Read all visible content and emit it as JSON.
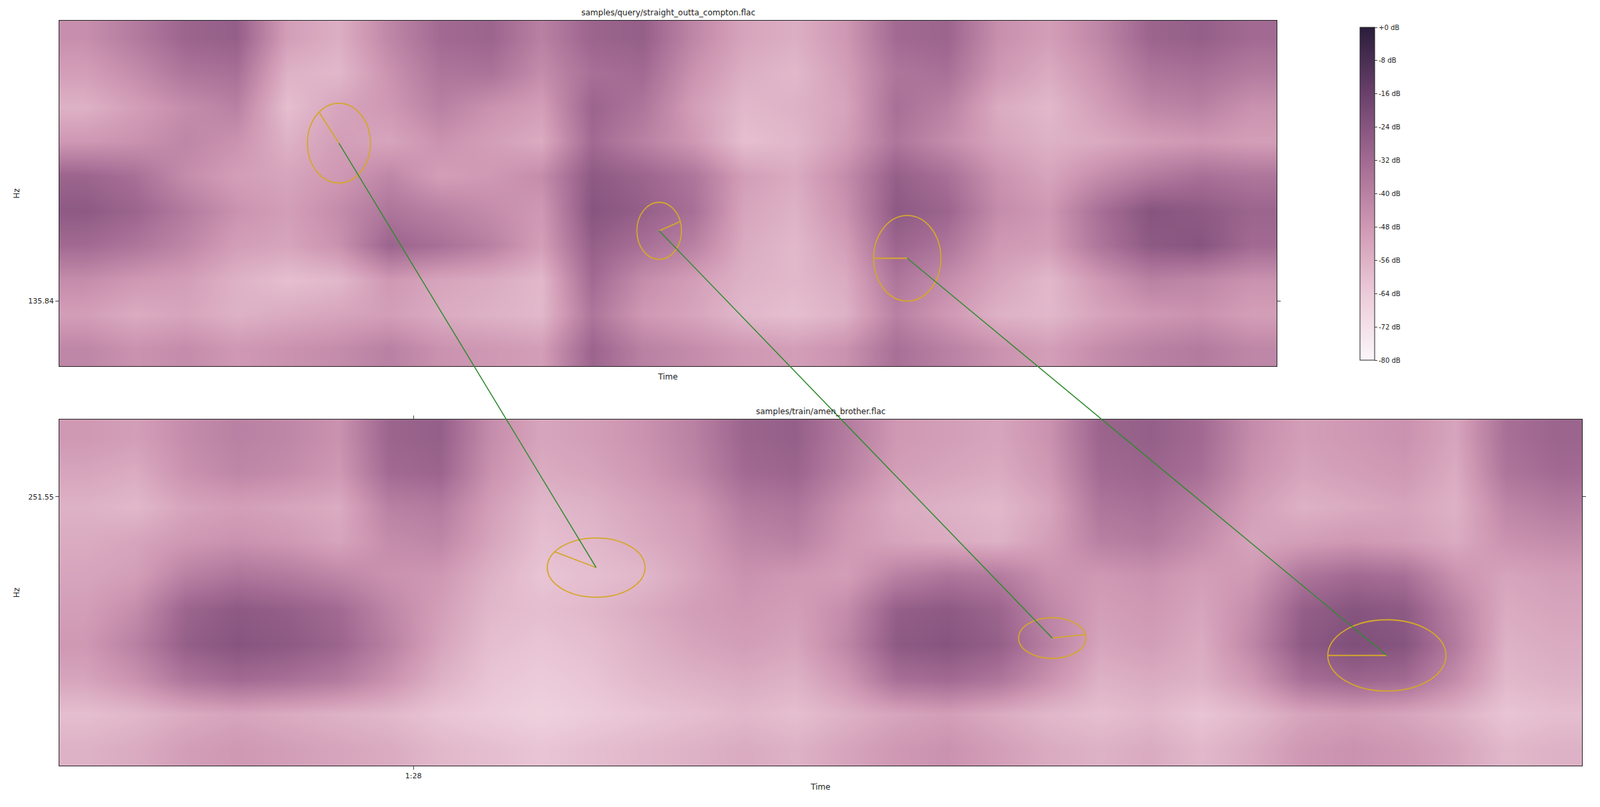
{
  "chart_data": [
    {
      "type": "heatmap",
      "title": "samples/query/straight_outta_compton.flac",
      "x_label": "Time",
      "y_label": "Hz",
      "xlim": [
        0,
        3.44
      ],
      "ylim": [
        100,
        290
      ],
      "xticks": [],
      "yticks": [
        135.84
      ],
      "tick_labels": "y",
      "grid": false,
      "color_range": [
        -80,
        0
      ],
      "color_ticks": [
        {
          "value": 0,
          "label": "+0 dB"
        },
        {
          "value": -8,
          "label": "-8 dB"
        },
        {
          "value": -16,
          "label": "-16 dB"
        },
        {
          "value": -24,
          "label": "-24 dB"
        },
        {
          "value": -32,
          "label": "-32 dB"
        },
        {
          "value": -40,
          "label": "-40 dB"
        },
        {
          "value": -48,
          "label": "-48 dB"
        },
        {
          "value": -56,
          "label": "-56 dB"
        },
        {
          "value": -64,
          "label": "-64 dB"
        },
        {
          "value": -72,
          "label": "-72 dB"
        },
        {
          "value": -80,
          "label": "-80 dB"
        }
      ],
      "cells": [
        [
          -42,
          -46,
          -44,
          -48,
          -46,
          -44,
          -40,
          -46,
          -48,
          -50,
          -30,
          -40,
          -44,
          -48,
          -50,
          -46,
          -34,
          -40,
          -46,
          -50,
          -44,
          -40,
          -38,
          -42
        ],
        [
          -50,
          -54,
          -52,
          -56,
          -54,
          -52,
          -50,
          -54,
          -56,
          -58,
          -36,
          -48,
          -52,
          -58,
          -60,
          -56,
          -40,
          -48,
          -56,
          -58,
          -52,
          -48,
          -46,
          -50
        ],
        [
          -44,
          -48,
          -50,
          -56,
          -60,
          -58,
          -48,
          -52,
          -54,
          -58,
          -32,
          -44,
          -50,
          -56,
          -58,
          -54,
          -36,
          -44,
          -52,
          -58,
          -48,
          -40,
          -42,
          -46
        ],
        [
          -32,
          -36,
          -42,
          -50,
          -52,
          -46,
          -30,
          -34,
          -40,
          -50,
          -28,
          -34,
          -40,
          -54,
          -58,
          -50,
          -30,
          -36,
          -48,
          -50,
          -36,
          -26,
          -24,
          -32
        ],
        [
          -26,
          -30,
          -38,
          -46,
          -50,
          -44,
          -36,
          -40,
          -44,
          -48,
          -24,
          -28,
          -34,
          -52,
          -56,
          -46,
          -26,
          -30,
          -44,
          -48,
          -34,
          -24,
          -26,
          -30
        ],
        [
          -30,
          -34,
          -44,
          -50,
          -52,
          -48,
          -42,
          -50,
          -48,
          -44,
          -26,
          -30,
          -36,
          -50,
          -54,
          -44,
          -28,
          -34,
          -46,
          -52,
          -44,
          -38,
          -34,
          -36
        ],
        [
          -48,
          -46,
          -42,
          -46,
          -56,
          -50,
          -52,
          -46,
          -50,
          -54,
          -32,
          -40,
          -48,
          -60,
          -58,
          -50,
          -36,
          -44,
          -52,
          -56,
          -54,
          -50,
          -48,
          -50
        ],
        [
          -56,
          -50,
          -44,
          -40,
          -60,
          -52,
          -48,
          -40,
          -46,
          -50,
          -30,
          -36,
          -50,
          -58,
          -56,
          -52,
          -34,
          -40,
          -54,
          -58,
          -50,
          -42,
          -40,
          -46
        ],
        [
          -50,
          -44,
          -36,
          -34,
          -56,
          -58,
          -46,
          -36,
          -35,
          -44,
          -34,
          -32,
          -46,
          -55,
          -58,
          -50,
          -36,
          -34,
          -48,
          -54,
          -46,
          -36,
          -34,
          -38
        ],
        [
          -45,
          -38,
          -30,
          -28,
          -50,
          -55,
          -42,
          -32,
          -30,
          -40,
          -30,
          -28,
          -42,
          -52,
          -55,
          -48,
          -32,
          -30,
          -45,
          -50,
          -42,
          -30,
          -28,
          -32
        ]
      ],
      "keypoints": [
        {
          "x": 0.79,
          "y": 222.7,
          "rx": 0.089,
          "ry": 21.9,
          "angle": 129
        },
        {
          "x": 1.695,
          "y": 174.5,
          "rx": 0.063,
          "ry": 15.7,
          "angle": 19
        },
        {
          "x": 2.396,
          "y": 159.4,
          "rx": 0.095,
          "ry": 23.5,
          "angle": 180
        }
      ]
    },
    {
      "type": "heatmap",
      "title": "samples/train/amen_brother.flac",
      "x_label": "Time",
      "y_label": "Hz",
      "xlim": [
        87,
        91.3
      ],
      "ylim": [
        100,
        295
      ],
      "xticks": [
        {
          "value": 88,
          "label": "1:28"
        }
      ],
      "yticks": [
        251.55
      ],
      "tick_labels": true,
      "grid": false,
      "cells": [
        [
          -56,
          -54,
          -50,
          -48,
          -50,
          -52,
          -54,
          -58,
          -60,
          -62,
          -60,
          -58,
          -56,
          -54,
          -56,
          -52,
          -48,
          -46,
          -50,
          -54,
          -56,
          -54,
          -58,
          -54,
          -48,
          -46,
          -48,
          -52,
          -58,
          -56
        ],
        [
          -60,
          -58,
          -54,
          -52,
          -54,
          -56,
          -58,
          -62,
          -64,
          -66,
          -64,
          -62,
          -60,
          -58,
          -60,
          -56,
          -52,
          -50,
          -54,
          -58,
          -60,
          -58,
          -62,
          -58,
          -52,
          -50,
          -52,
          -56,
          -62,
          -60
        ],
        [
          -52,
          -46,
          -36,
          -32,
          -34,
          -38,
          -46,
          -56,
          -62,
          -64,
          -62,
          -58,
          -56,
          -54,
          -56,
          -48,
          -34,
          -32,
          -36,
          -46,
          -56,
          -54,
          -56,
          -48,
          -34,
          -30,
          -32,
          -44,
          -58,
          -56
        ],
        [
          -48,
          -40,
          -28,
          -24,
          -26,
          -30,
          -40,
          -52,
          -60,
          -62,
          -60,
          -56,
          -52,
          -50,
          -52,
          -42,
          -26,
          -24,
          -28,
          -40,
          -52,
          -50,
          -54,
          -42,
          -26,
          -22,
          -24,
          -38,
          -56,
          -54
        ],
        [
          -50,
          -44,
          -30,
          -26,
          -28,
          -32,
          -42,
          -50,
          -58,
          -60,
          -58,
          -54,
          -50,
          -48,
          -50,
          -44,
          -28,
          -26,
          -30,
          -42,
          -50,
          -48,
          -52,
          -44,
          -28,
          -24,
          -26,
          -40,
          -54,
          -52
        ],
        [
          -52,
          -50,
          -40,
          -36,
          -38,
          -42,
          -46,
          -48,
          -56,
          -62,
          -60,
          -58,
          -52,
          -46,
          -48,
          -50,
          -40,
          -36,
          -38,
          -46,
          -48,
          -46,
          -50,
          -48,
          -36,
          -32,
          -34,
          -46,
          -52,
          -50
        ],
        [
          -54,
          -52,
          -48,
          -46,
          -48,
          -52,
          -44,
          -42,
          -52,
          -60,
          -58,
          -54,
          -50,
          -42,
          -40,
          -48,
          -52,
          -54,
          -56,
          -50,
          -40,
          -38,
          -44,
          -52,
          -50,
          -48,
          -50,
          -54,
          -46,
          -44
        ],
        [
          -56,
          -58,
          -52,
          -50,
          -52,
          -54,
          -40,
          -38,
          -50,
          -58,
          -56,
          -52,
          -48,
          -38,
          -36,
          -46,
          -54,
          -56,
          -58,
          -52,
          -36,
          -34,
          -40,
          -50,
          -56,
          -54,
          -52,
          -56,
          -42,
          -38
        ],
        [
          -52,
          -54,
          -46,
          -42,
          -44,
          -48,
          -32,
          -30,
          -46,
          -54,
          -52,
          -48,
          -42,
          -32,
          -30,
          -40,
          -50,
          -52,
          -54,
          -48,
          -32,
          -30,
          -34,
          -46,
          -52,
          -50,
          -48,
          -54,
          -36,
          -32
        ],
        [
          -48,
          -50,
          -44,
          -40,
          -42,
          -46,
          -30,
          -28,
          -44,
          -52,
          -50,
          -46,
          -40,
          -30,
          -28,
          -38,
          -48,
          -50,
          -52,
          -46,
          -30,
          -28,
          -32,
          -44,
          -50,
          -48,
          -46,
          -52,
          -34,
          -30
        ]
      ],
      "keypoints": [
        {
          "x": 88.516,
          "y": 211.6,
          "rx": 0.138,
          "ry": 16.7,
          "angle": 148
        },
        {
          "x": 89.804,
          "y": 171.9,
          "rx": 0.095,
          "ry": 11.5,
          "angle": 10
        },
        {
          "x": 90.749,
          "y": 162.1,
          "rx": 0.167,
          "ry": 20.1,
          "angle": 180
        }
      ]
    }
  ],
  "matches": [
    [
      0,
      0
    ],
    [
      1,
      1
    ],
    [
      2,
      2
    ]
  ]
}
